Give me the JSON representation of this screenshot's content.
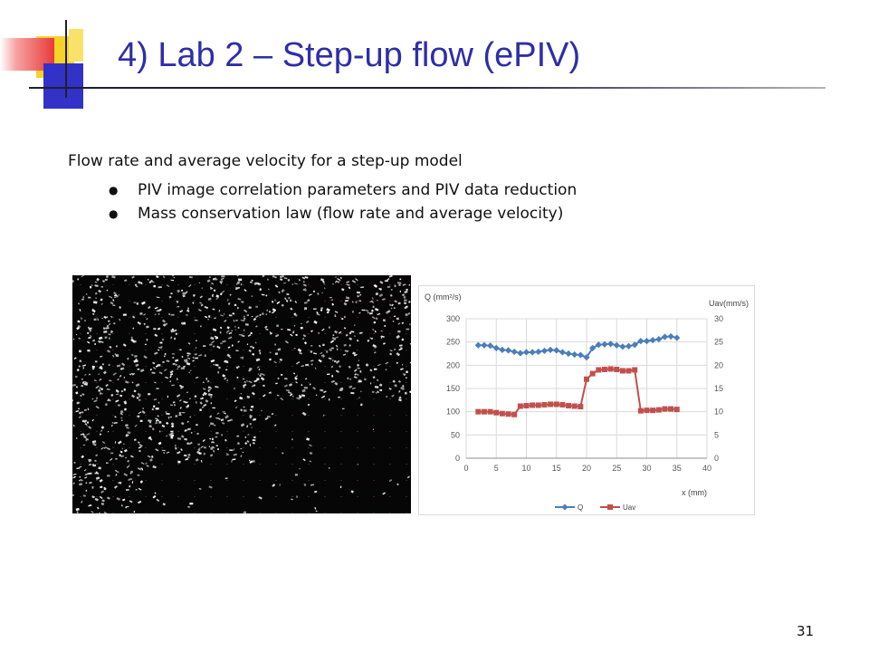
{
  "slide": {
    "title": "4) Lab 2 – Step-up flow (ePIV)",
    "intro": "Flow rate and average velocity for a step-up model",
    "bullets": [
      "PIV image correlation parameters and PIV data reduction",
      "Mass conservation law (flow rate and average velocity)"
    ],
    "page_number": "31"
  },
  "chart_data": {
    "type": "line",
    "xlabel": "x (mm)",
    "ylabel_left": "Q (mm²/s)",
    "ylabel_right": "Uav(mm/s)",
    "xlim": [
      0,
      40
    ],
    "xticks": [
      0,
      5,
      10,
      15,
      20,
      25,
      30,
      35,
      40
    ],
    "ylim_left": [
      0,
      300
    ],
    "yticks_left": [
      0,
      50,
      100,
      150,
      200,
      250,
      300
    ],
    "ylim_right": [
      0,
      30
    ],
    "yticks_right": [
      0,
      5,
      10,
      15,
      20,
      25,
      30
    ],
    "grid": true,
    "legend_position": "bottom",
    "series": [
      {
        "name": "Q",
        "axis": "left",
        "color": "#4a7ebb",
        "marker": "diamond",
        "x": [
          2,
          3,
          4,
          5,
          6,
          7,
          8,
          9,
          10,
          11,
          12,
          13,
          14,
          15,
          16,
          17,
          18,
          19,
          20,
          21,
          22,
          23,
          24,
          25,
          26,
          27,
          28,
          29,
          30,
          31,
          32,
          33,
          34,
          35
        ],
        "y": [
          243,
          243,
          242,
          237,
          233,
          232,
          229,
          226,
          228,
          228,
          229,
          231,
          233,
          232,
          228,
          225,
          223,
          222,
          217,
          237,
          244,
          245,
          246,
          243,
          240,
          241,
          244,
          252,
          252,
          254,
          256,
          261,
          262,
          259
        ]
      },
      {
        "name": "Uav",
        "axis": "right",
        "color": "#c0504d",
        "marker": "square",
        "x": [
          2,
          3,
          4,
          5,
          6,
          7,
          8,
          9,
          10,
          11,
          12,
          13,
          14,
          15,
          16,
          17,
          18,
          19,
          20,
          21,
          22,
          23,
          24,
          25,
          26,
          27,
          28,
          29,
          30,
          31,
          32,
          33,
          34,
          35
        ],
        "y": [
          10,
          10,
          10,
          9.8,
          9.6,
          9.5,
          9.4,
          11.2,
          11.3,
          11.4,
          11.4,
          11.5,
          11.6,
          11.6,
          11.5,
          11.3,
          11.2,
          11.1,
          17,
          18.2,
          19,
          19.1,
          19.2,
          19.1,
          18.8,
          18.8,
          19,
          10.2,
          10.3,
          10.3,
          10.4,
          10.6,
          10.6,
          10.5
        ]
      }
    ]
  },
  "colors": {
    "title": "#2e2ea8",
    "accent_yellow": "#f5d327",
    "accent_blue": "#3232c8",
    "accent_red": "#e83a3a"
  }
}
